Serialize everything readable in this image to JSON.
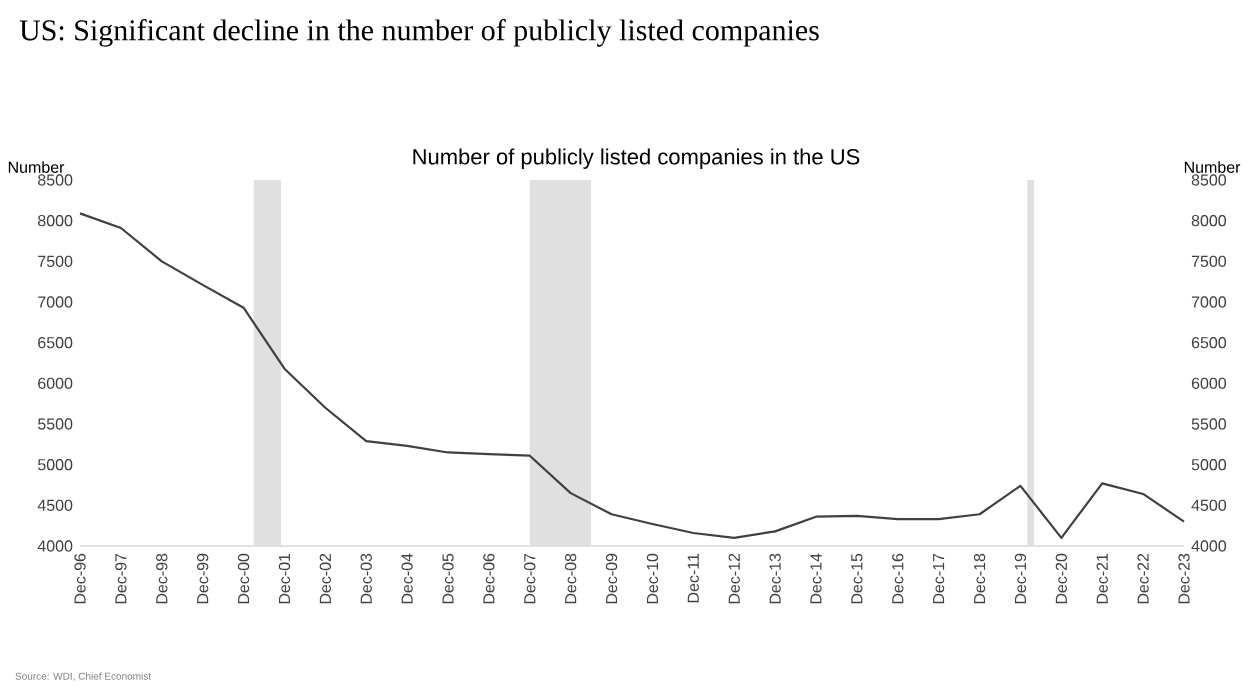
{
  "chart_data": {
    "type": "line",
    "title": "US: Significant decline in the number of publicly listed companies",
    "subtitle": "Number of publicly listed companies in the US",
    "ylabel": "Number",
    "y2label": "Number",
    "annotations": [
      "Source: WDI, Chief Economist"
    ],
    "x": [
      "1996-12",
      "1997-12",
      "1998-12",
      "1999-12",
      "2000-12",
      "2001-12",
      "2002-12",
      "2003-12",
      "2004-12",
      "2005-12",
      "2006-12",
      "2007-12",
      "2008-12",
      "2009-12",
      "2010-12",
      "2011-12",
      "2012-12",
      "2013-12",
      "2014-12",
      "2015-12",
      "2016-12",
      "2017-12",
      "2018-12",
      "2019-12",
      "2020-12",
      "2021-12",
      "2022-12",
      "2023-12"
    ],
    "series": [
      {
        "color": "#404040",
        "values": [
          8090,
          7910,
          7500,
          7210,
          6930,
          6180,
          5700,
          5290,
          5230,
          5150,
          5130,
          5110,
          4650,
          4390,
          4270,
          4160,
          4100,
          4180,
          4360,
          4370,
          4330,
          4330,
          4390,
          4740,
          4100,
          4770,
          4640,
          4300
        ]
      }
    ],
    "xlim": [
      "1996-12",
      "2023-12"
    ],
    "xticks": [
      {
        "value": "1996-12",
        "label": "Dec-96"
      },
      {
        "value": "1997-12",
        "label": "Dec-97"
      },
      {
        "value": "1998-12",
        "label": "Dec-98"
      },
      {
        "value": "1999-12",
        "label": "Dec-99"
      },
      {
        "value": "2000-12",
        "label": "Dec-00"
      },
      {
        "value": "2001-12",
        "label": "Dec-01"
      },
      {
        "value": "2002-12",
        "label": "Dec-02"
      },
      {
        "value": "2003-12",
        "label": "Dec-03"
      },
      {
        "value": "2004-12",
        "label": "Dec-04"
      },
      {
        "value": "2005-12",
        "label": "Dec-05"
      },
      {
        "value": "2006-12",
        "label": "Dec-06"
      },
      {
        "value": "2007-12",
        "label": "Dec-07"
      },
      {
        "value": "2008-12",
        "label": "Dec-08"
      },
      {
        "value": "2009-12",
        "label": "Dec-09"
      },
      {
        "value": "2010-12",
        "label": "Dec-10"
      },
      {
        "value": "2011-12",
        "label": "Dec-11"
      },
      {
        "value": "2012-12",
        "label": "Dec-12"
      },
      {
        "value": "2013-12",
        "label": "Dec-13"
      },
      {
        "value": "2014-12",
        "label": "Dec-14"
      },
      {
        "value": "2015-12",
        "label": "Dec-15"
      },
      {
        "value": "2016-12",
        "label": "Dec-16"
      },
      {
        "value": "2017-12",
        "label": "Dec-17"
      },
      {
        "value": "2018-12",
        "label": "Dec-18"
      },
      {
        "value": "2019-12",
        "label": "Dec-19"
      },
      {
        "value": "2020-12",
        "label": "Dec-20"
      },
      {
        "value": "2021-12",
        "label": "Dec-21"
      },
      {
        "value": "2022-12",
        "label": "Dec-22"
      },
      {
        "value": "2023-12",
        "label": "Dec-23"
      }
    ],
    "ylim": [
      4000,
      8500
    ],
    "yticks": [
      4000,
      4500,
      5000,
      5500,
      6000,
      6500,
      7000,
      7500,
      8000,
      8500
    ],
    "y2lim": [
      4000,
      8500
    ],
    "y2ticks": [
      4000,
      4500,
      5000,
      5500,
      6000,
      6500,
      7000,
      7500,
      8000,
      8500
    ],
    "bands": [
      {
        "axis": "x",
        "from": "2001-03",
        "to": "2001-11",
        "color": "#e0e0e0"
      },
      {
        "axis": "x",
        "from": "2007-12",
        "to": "2009-06",
        "color": "#e0e0e0"
      },
      {
        "axis": "x",
        "from": "2020-02",
        "to": "2020-04",
        "color": "#e0e0e0"
      }
    ],
    "grid": false,
    "marker": "none",
    "line_style": "solid"
  }
}
